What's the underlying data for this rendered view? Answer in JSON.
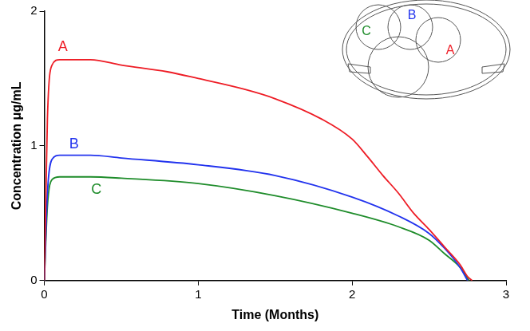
{
  "chart_data": {
    "type": "line",
    "x_label": "Time (Months)",
    "y_label": "Concentration μg/mL",
    "xlim": [
      0,
      3
    ],
    "xticks": [
      0,
      1,
      2,
      3
    ],
    "ylim": [
      0,
      2
    ],
    "yticks": [
      0,
      1,
      2
    ],
    "grid": false,
    "series": [
      {
        "name": "A",
        "color": "#ee1c25",
        "x": [
          0,
          0.02,
          0.05,
          0.1,
          0.3,
          0.5,
          0.8,
          1.0,
          1.3,
          1.5,
          1.8,
          2.0,
          2.1,
          2.2,
          2.3,
          2.4,
          2.5,
          2.6,
          2.7,
          2.75,
          2.78
        ],
        "values": [
          0,
          1.2,
          1.6,
          1.64,
          1.64,
          1.6,
          1.55,
          1.5,
          1.42,
          1.35,
          1.2,
          1.05,
          0.92,
          0.78,
          0.65,
          0.5,
          0.38,
          0.25,
          0.12,
          0.03,
          0
        ]
      },
      {
        "name": "B",
        "color": "#2233ee",
        "x": [
          0,
          0.02,
          0.05,
          0.1,
          0.3,
          0.5,
          1.0,
          1.5,
          2.0,
          2.3,
          2.5,
          2.6,
          2.7,
          2.75
        ],
        "values": [
          0,
          0.65,
          0.9,
          0.93,
          0.93,
          0.91,
          0.86,
          0.78,
          0.62,
          0.48,
          0.35,
          0.24,
          0.1,
          0
        ]
      },
      {
        "name": "C",
        "color": "#1e8c2a",
        "x": [
          0,
          0.02,
          0.05,
          0.1,
          0.3,
          0.5,
          1.0,
          1.5,
          2.0,
          2.3,
          2.5,
          2.6,
          2.7,
          2.76
        ],
        "values": [
          0,
          0.55,
          0.75,
          0.77,
          0.77,
          0.76,
          0.72,
          0.63,
          0.5,
          0.4,
          0.3,
          0.2,
          0.1,
          0
        ]
      }
    ]
  }
}
